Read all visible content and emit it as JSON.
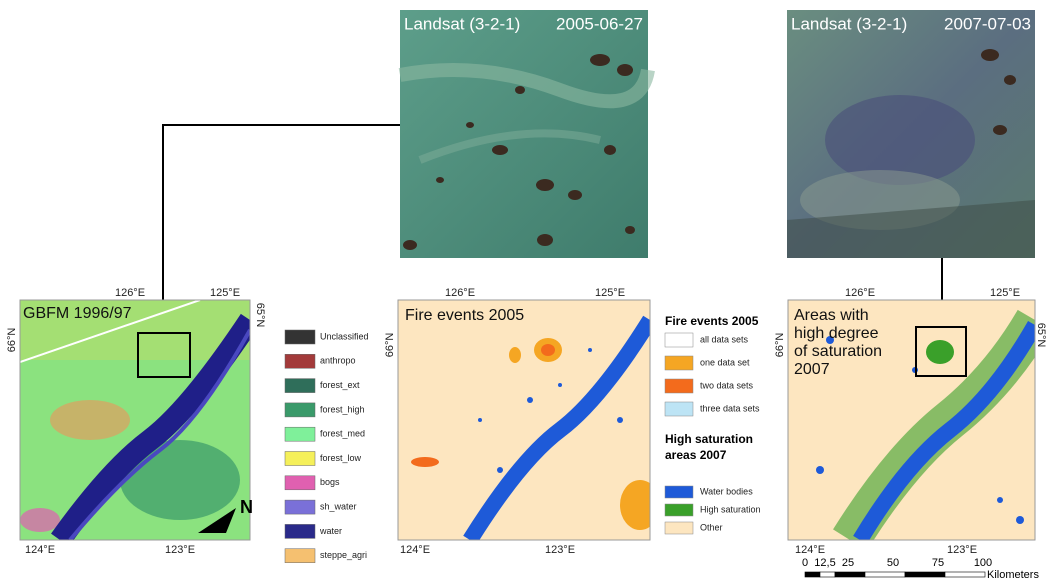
{
  "landsat_2005": {
    "title": "Landsat (3-2-1)",
    "date": "2005-06-27"
  },
  "landsat_2007": {
    "title": "Landsat (3-2-1)",
    "date": "2007-07-03"
  },
  "gbfm": {
    "title": "GBFM 1996/97",
    "north": "N",
    "lon_top": [
      "126°E",
      "125°E"
    ],
    "lon_bottom": [
      "124°E",
      "123°E"
    ],
    "lat_left": "66°N",
    "lat_right": "65°N"
  },
  "fire": {
    "title": "Fire events 2005",
    "lon_top": [
      "126°E",
      "125°E"
    ],
    "lon_bottom": [
      "124°E",
      "123°E"
    ],
    "lat_left": "66°N"
  },
  "saturation": {
    "title": [
      "Areas with",
      "high degree",
      "of saturation",
      "2007"
    ],
    "lon_top": [
      "126°E",
      "125°E"
    ],
    "lon_bottom": [
      "124°E",
      "123°E"
    ],
    "lat_left": "66°N",
    "lat_right": "65°N"
  },
  "legend_gbfm": [
    {
      "label": "Unclassified",
      "color": "#333333"
    },
    {
      "label": "anthropo",
      "color": "#a33a3a"
    },
    {
      "label": "forest_ext",
      "color": "#2f6e5a"
    },
    {
      "label": "forest_high",
      "color": "#3a9a6a"
    },
    {
      "label": "forest_med",
      "color": "#7ff09a"
    },
    {
      "label": "forest_low",
      "color": "#f5f05a"
    },
    {
      "label": "bogs",
      "color": "#e060b0"
    },
    {
      "label": "sh_water",
      "color": "#7a70d8"
    },
    {
      "label": "water",
      "color": "#2a2a8a"
    },
    {
      "label": "steppe_agri",
      "color": "#f5c070"
    }
  ],
  "legend_fire": {
    "title": "Fire events 2005",
    "items": [
      {
        "label": "all data sets",
        "color": "#ffffff"
      },
      {
        "label": "one data set",
        "color": "#f5a623"
      },
      {
        "label": "two data sets",
        "color": "#f36b1c"
      },
      {
        "label": "three data sets",
        "color": "#bde4f5"
      }
    ]
  },
  "legend_saturation": {
    "title": [
      "High saturation",
      "areas 2007"
    ],
    "items": [
      {
        "label": "Water bodies",
        "color": "#1e5ad8"
      },
      {
        "label": "High saturation",
        "color": "#3aa02a"
      },
      {
        "label": "Other",
        "color": "#fde6c0"
      }
    ]
  },
  "scale_bar": {
    "labels": [
      "0",
      "12,5",
      "25",
      "50",
      "75",
      "100"
    ],
    "unit": "Kilometers"
  }
}
